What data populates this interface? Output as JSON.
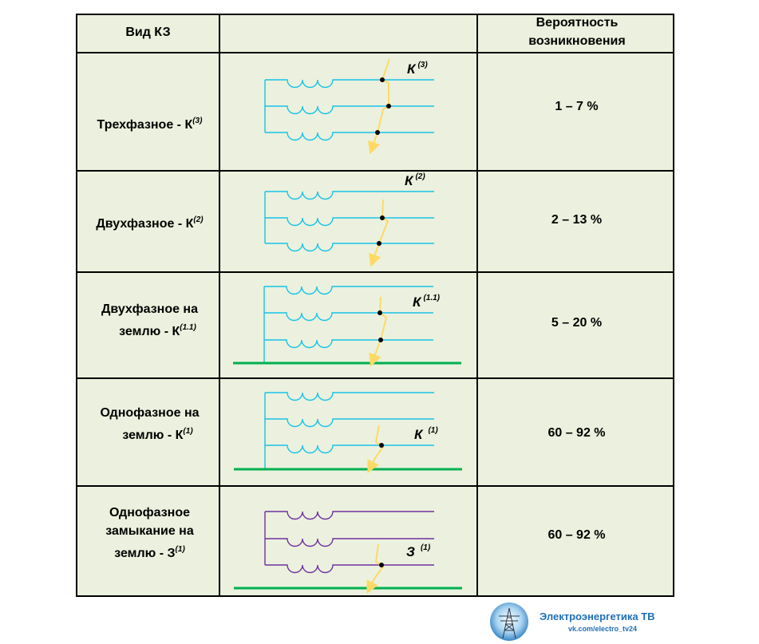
{
  "header": {
    "type_col": "Вид КЗ",
    "prob_col_line1": "Вероятность",
    "prob_col_line2": "возникновения"
  },
  "rows": [
    {
      "type_line1": "Трехфазное - К",
      "type_sup": "(3)",
      "k_label": "К",
      "k_sup": "(3)",
      "probability": "1 – 7 %"
    },
    {
      "type_line1": "Двухфазное - К",
      "type_sup": "(2)",
      "k_label": "К",
      "k_sup": "(2)",
      "probability": "2 – 13 %"
    },
    {
      "type_line1": "Двухфазное на",
      "type_line2": "землю - К",
      "type_sup": "(1.1)",
      "k_label": "К",
      "k_sup": "(1.1)",
      "probability": "5 – 20 %"
    },
    {
      "type_line1": "Однофазное на",
      "type_line2": "землю - К",
      "type_sup": "(1)",
      "k_label": "К",
      "k_sup": "(1)",
      "probability": "60 – 92 %"
    },
    {
      "type_line1": "Однофазное",
      "type_line2": "замыкание на",
      "type_line3": "землю - З",
      "type_sup": "(1)",
      "k_label": "З",
      "k_sup": "(1)",
      "probability": "60 – 92 %"
    }
  ],
  "footer": {
    "title": "Электроэнергетика ТВ",
    "url": "vk.com/electro_tv24"
  },
  "colors": {
    "cell_bg": "#ebf1de",
    "wire_cyan": "#17c3e8",
    "wire_purple": "#7030a0",
    "ground_green": "#00b050",
    "lightning": "#ffd966",
    "footer_text": "#1f6fb5"
  }
}
